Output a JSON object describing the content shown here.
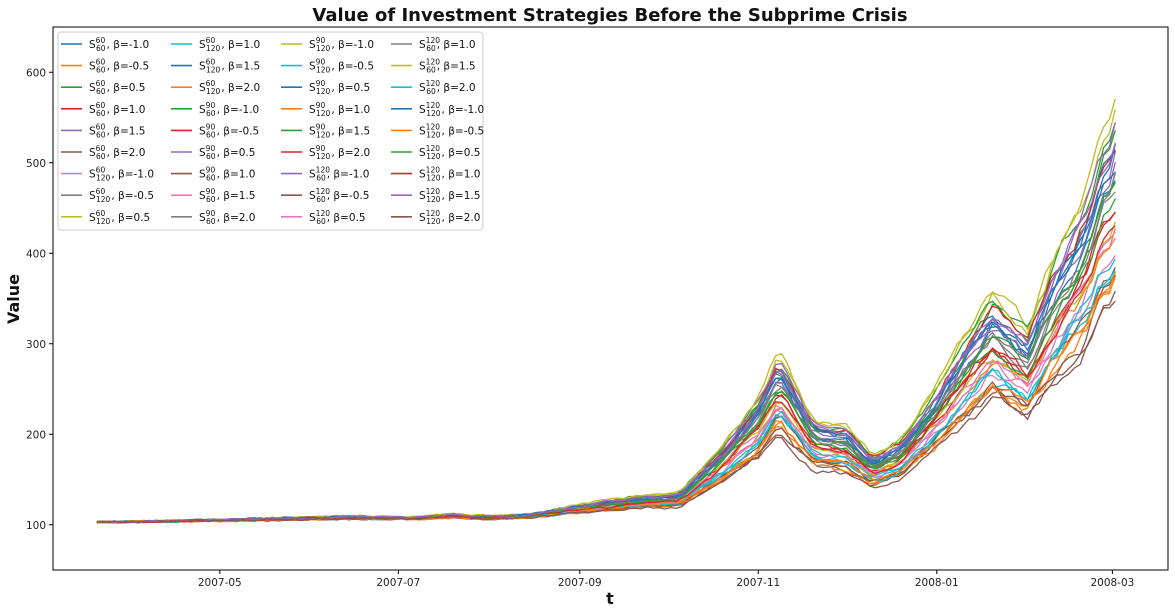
{
  "chart_data": {
    "type": "line",
    "title": "Value of Investment Strategies Before the Subprime Crisis",
    "xlabel": "t",
    "ylabel": "Value",
    "xlim": [
      "2007-03-05",
      "2008-03-20"
    ],
    "ylim": [
      50,
      650
    ],
    "x_ticks": [
      "2007-05",
      "2007-07",
      "2007-09",
      "2007-11",
      "2008-01",
      "2008-03"
    ],
    "y_ticks": [
      100,
      200,
      300,
      400,
      500,
      600
    ],
    "grid": false,
    "legend": {
      "location": "upper-left",
      "columns": 4
    },
    "x_start": "2007-03-20",
    "x_end": "2008-03-03",
    "common_path": {
      "dates": [
        "2007-03-20",
        "2007-04-15",
        "2007-05-15",
        "2007-06-15",
        "2007-07-05",
        "2007-07-20",
        "2007-08-01",
        "2007-08-15",
        "2007-09-01",
        "2007-09-20",
        "2007-10-05",
        "2007-10-20",
        "2007-11-01",
        "2007-11-08",
        "2007-11-20",
        "2007-12-01",
        "2007-12-10",
        "2007-12-20",
        "2008-01-01",
        "2008-01-10",
        "2008-01-20",
        "2008-02-01",
        "2008-02-10",
        "2008-02-20",
        "2008-03-03"
      ],
      "values": [
        103,
        104,
        106,
        108,
        107,
        110,
        108,
        110,
        118,
        125,
        128,
        170,
        210,
        250,
        190,
        185,
        160,
        175,
        220,
        260,
        300,
        270,
        330,
        380,
        470
      ]
    },
    "series": [
      {
        "name": "S60,60, β=-1.0",
        "color": "#1f77b4",
        "scale": 1.08,
        "noise": 1
      },
      {
        "name": "S60,60, β=-0.5",
        "color": "#ff7f0e",
        "scale": 0.72,
        "noise": 2
      },
      {
        "name": "S60,60, β=0.5",
        "color": "#2ca02c",
        "scale": 1.22,
        "noise": 3
      },
      {
        "name": "S60,60, β=1.0",
        "color": "#d62728",
        "scale": 0.95,
        "noise": 4
      },
      {
        "name": "S60,60, β=1.5",
        "color": "#9467bd",
        "scale": 1.15,
        "noise": 5
      },
      {
        "name": "S60,60, β=2.0",
        "color": "#8c564b",
        "scale": 0.68,
        "noise": 6
      },
      {
        "name": "S60,120, β=-1.0",
        "color": "#e377c2",
        "scale": 0.88,
        "noise": 7
      },
      {
        "name": "S60,120, β=-0.5",
        "color": "#7f7f7f",
        "scale": 1.05,
        "noise": 8
      },
      {
        "name": "S60,120, β=0.5",
        "color": "#bcbd22",
        "scale": 1.3,
        "noise": 9
      },
      {
        "name": "S60,120, β=1.0",
        "color": "#17becf",
        "scale": 0.78,
        "noise": 10
      },
      {
        "name": "S60,120, β=1.5",
        "color": "#1f77b4",
        "scale": 1.18,
        "noise": 11
      },
      {
        "name": "S60,120, β=2.0",
        "color": "#ff7f0e",
        "scale": 0.9,
        "noise": 12
      },
      {
        "name": "S90,60, β=-1.0",
        "color": "#2ca02c",
        "scale": 1.25,
        "noise": 13
      },
      {
        "name": "S90,60, β=-0.5",
        "color": "#d62728",
        "scale": 0.98,
        "noise": 14
      },
      {
        "name": "S90,60, β=0.5",
        "color": "#9467bd",
        "scale": 1.1,
        "noise": 15
      },
      {
        "name": "S90,60, β=1.0",
        "color": "#8c564b",
        "scale": 0.75,
        "noise": 16
      },
      {
        "name": "S90,60, β=1.5",
        "color": "#e377c2",
        "scale": 0.85,
        "noise": 17
      },
      {
        "name": "S90,60, β=2.0",
        "color": "#7f7f7f",
        "scale": 1.02,
        "noise": 18
      },
      {
        "name": "S90,120, β=-1.0",
        "color": "#bcbd22",
        "scale": 0.93,
        "noise": 19
      },
      {
        "name": "S90,120, β=-0.5",
        "color": "#17becf",
        "scale": 0.82,
        "noise": 20
      },
      {
        "name": "S90,120, β=0.5",
        "color": "#1f77b4",
        "scale": 1.12,
        "noise": 21
      },
      {
        "name": "S90,120, β=1.0",
        "color": "#ff7f0e",
        "scale": 0.7,
        "noise": 22
      },
      {
        "name": "S90,120, β=1.5",
        "color": "#2ca02c",
        "scale": 1.0,
        "noise": 23
      },
      {
        "name": "S90,120, β=2.0",
        "color": "#d62728",
        "scale": 1.2,
        "noise": 24
      },
      {
        "name": "S120,60, β=-1.0",
        "color": "#9467bd",
        "scale": 1.24,
        "noise": 25
      },
      {
        "name": "S120,60, β=-0.5",
        "color": "#8c564b",
        "scale": 0.74,
        "noise": 26
      },
      {
        "name": "S120,60, β=0.5",
        "color": "#e377c2",
        "scale": 0.92,
        "noise": 27
      },
      {
        "name": "S120,60, β=1.0",
        "color": "#7f7f7f",
        "scale": 1.07,
        "noise": 28
      },
      {
        "name": "S120,60, β=1.5",
        "color": "#bcbd22",
        "scale": 1.32,
        "noise": 29
      },
      {
        "name": "S120,60, β=2.0",
        "color": "#17becf",
        "scale": 0.8,
        "noise": 30
      },
      {
        "name": "S120,120, β=-1.0",
        "color": "#1f77b4",
        "scale": 1.16,
        "noise": 31
      },
      {
        "name": "S120,120, β=-0.5",
        "color": "#ff7f0e",
        "scale": 0.76,
        "noise": 32
      },
      {
        "name": "S120,120, β=0.5",
        "color": "#2ca02c",
        "scale": 1.04,
        "noise": 33
      },
      {
        "name": "S120,120, β=1.0",
        "color": "#d62728",
        "scale": 0.96,
        "noise": 34
      },
      {
        "name": "S120,120, β=1.5",
        "color": "#9467bd",
        "scale": 1.19,
        "noise": 35
      },
      {
        "name": "S120,120, β=2.0",
        "color": "#8c564b",
        "scale": 0.65,
        "noise": 36
      }
    ]
  },
  "legend_items": [
    {
      "sup": "60",
      "sub": "60",
      "beta": "β=-1.0",
      "color": "#1f77b4"
    },
    {
      "sup": "60",
      "sub": "60",
      "beta": "β=-0.5",
      "color": "#ff7f0e"
    },
    {
      "sup": "60",
      "sub": "60",
      "beta": "β=0.5",
      "color": "#2ca02c"
    },
    {
      "sup": "60",
      "sub": "60",
      "beta": "β=1.0",
      "color": "#d62728"
    },
    {
      "sup": "60",
      "sub": "60",
      "beta": "β=1.5",
      "color": "#9467bd"
    },
    {
      "sup": "60",
      "sub": "60",
      "beta": "β=2.0",
      "color": "#8c564b"
    },
    {
      "sup": "60",
      "sub": "120",
      "beta": "β=-1.0",
      "color": "#e377c2"
    },
    {
      "sup": "60",
      "sub": "120",
      "beta": "β=-0.5",
      "color": "#7f7f7f"
    },
    {
      "sup": "60",
      "sub": "120",
      "beta": "β=0.5",
      "color": "#bcbd22"
    },
    {
      "sup": "60",
      "sub": "120",
      "beta": "β=1.0",
      "color": "#17becf"
    },
    {
      "sup": "60",
      "sub": "120",
      "beta": "β=1.5",
      "color": "#1f77b4"
    },
    {
      "sup": "60",
      "sub": "120",
      "beta": "β=2.0",
      "color": "#ff7f0e"
    },
    {
      "sup": "90",
      "sub": "60",
      "beta": "β=-1.0",
      "color": "#2ca02c"
    },
    {
      "sup": "90",
      "sub": "60",
      "beta": "β=-0.5",
      "color": "#d62728"
    },
    {
      "sup": "90",
      "sub": "60",
      "beta": "β=0.5",
      "color": "#9467bd"
    },
    {
      "sup": "90",
      "sub": "60",
      "beta": "β=1.0",
      "color": "#8c564b"
    },
    {
      "sup": "90",
      "sub": "60",
      "beta": "β=1.5",
      "color": "#e377c2"
    },
    {
      "sup": "90",
      "sub": "60",
      "beta": "β=2.0",
      "color": "#7f7f7f"
    },
    {
      "sup": "90",
      "sub": "120",
      "beta": "β=-1.0",
      "color": "#bcbd22"
    },
    {
      "sup": "90",
      "sub": "120",
      "beta": "β=-0.5",
      "color": "#17becf"
    },
    {
      "sup": "90",
      "sub": "120",
      "beta": "β=0.5",
      "color": "#1f77b4"
    },
    {
      "sup": "90",
      "sub": "120",
      "beta": "β=1.0",
      "color": "#ff7f0e"
    },
    {
      "sup": "90",
      "sub": "120",
      "beta": "β=1.5",
      "color": "#2ca02c"
    },
    {
      "sup": "90",
      "sub": "120",
      "beta": "β=2.0",
      "color": "#d62728"
    },
    {
      "sup": "120",
      "sub": "60",
      "beta": "β=-1.0",
      "color": "#9467bd"
    },
    {
      "sup": "120",
      "sub": "60",
      "beta": "β=-0.5",
      "color": "#8c564b"
    },
    {
      "sup": "120",
      "sub": "60",
      "beta": "β=0.5",
      "color": "#e377c2"
    },
    {
      "sup": "120",
      "sub": "60",
      "beta": "β=1.0",
      "color": "#7f7f7f"
    },
    {
      "sup": "120",
      "sub": "60",
      "beta": "β=1.5",
      "color": "#bcbd22"
    },
    {
      "sup": "120",
      "sub": "60",
      "beta": "β=2.0",
      "color": "#17becf"
    },
    {
      "sup": "120",
      "sub": "120",
      "beta": "β=-1.0",
      "color": "#1f77b4"
    },
    {
      "sup": "120",
      "sub": "120",
      "beta": "β=-0.5",
      "color": "#ff7f0e"
    },
    {
      "sup": "120",
      "sub": "120",
      "beta": "β=0.5",
      "color": "#2ca02c"
    },
    {
      "sup": "120",
      "sub": "120",
      "beta": "β=1.0",
      "color": "#d62728"
    },
    {
      "sup": "120",
      "sub": "120",
      "beta": "β=1.5",
      "color": "#9467bd"
    },
    {
      "sup": "120",
      "sub": "120",
      "beta": "β=2.0",
      "color": "#8c564b"
    }
  ]
}
